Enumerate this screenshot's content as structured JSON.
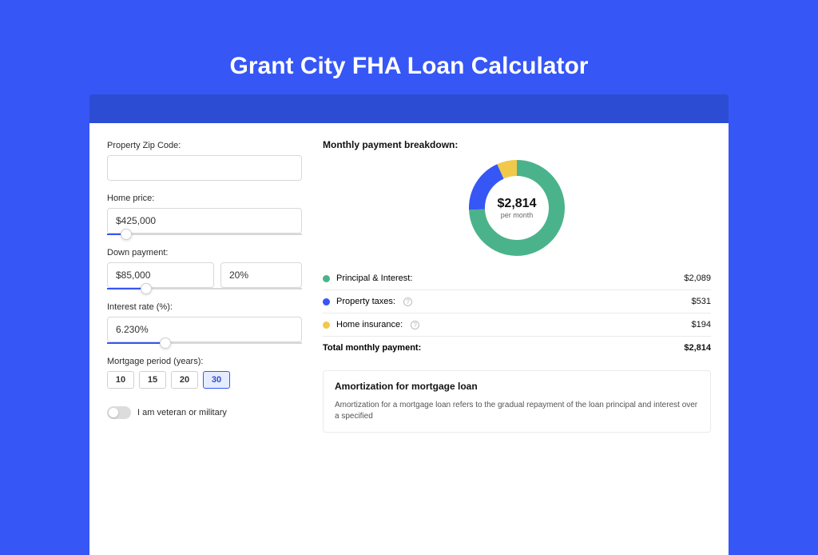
{
  "page": {
    "title": "Grant City FHA Loan Calculator",
    "background_color": "#3656f5",
    "header_band_color": "#2c4dd3"
  },
  "form": {
    "zip": {
      "label": "Property Zip Code:",
      "value": ""
    },
    "home_price": {
      "label": "Home price:",
      "value": "$425,000",
      "slider_pct": 10
    },
    "down_payment": {
      "label": "Down payment:",
      "amount": "$85,000",
      "percent": "20%",
      "slider_pct": 20
    },
    "interest_rate": {
      "label": "Interest rate (%):",
      "value": "6.230%",
      "slider_pct": 30
    },
    "period": {
      "label": "Mortgage period (years):",
      "options": [
        "10",
        "15",
        "20",
        "30"
      ],
      "selected": "30"
    },
    "veteran": {
      "label": "I am veteran or military",
      "checked": false
    }
  },
  "breakdown": {
    "title": "Monthly payment breakdown:",
    "center_amount": "$2,814",
    "center_sub": "per month",
    "items": [
      {
        "name": "principal-interest",
        "label": "Principal & Interest:",
        "value": "$2,089",
        "numeric": 2089,
        "color": "#4bb38b",
        "info": false
      },
      {
        "name": "property-taxes",
        "label": "Property taxes:",
        "value": "$531",
        "numeric": 531,
        "color": "#3656f5",
        "info": true
      },
      {
        "name": "home-insurance",
        "label": "Home insurance:",
        "value": "$194",
        "numeric": 194,
        "color": "#f0c94b",
        "info": true
      }
    ],
    "total": {
      "label": "Total monthly payment:",
      "value": "$2,814",
      "numeric": 2814
    },
    "donut": {
      "size": 120,
      "stroke_width": 20,
      "bg_color": "#ffffff"
    }
  },
  "amortization": {
    "title": "Amortization for mortgage loan",
    "body": "Amortization for a mortgage loan refers to the gradual repayment of the loan principal and interest over a specified"
  }
}
